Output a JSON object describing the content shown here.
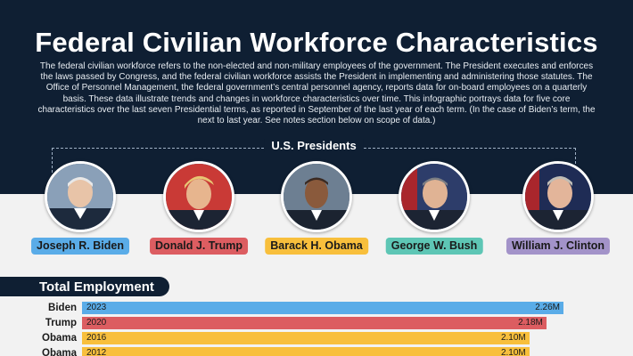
{
  "page": {
    "title": "Federal Civilian Workforce Characteristics",
    "intro": "The federal civilian workforce refers to the non-elected and non-military employees of the government. The President executes and enforces the laws passed by Congress, and the federal civilian workforce assists the President in implementing and administering those statutes. The Office of Personnel Management, the federal government’s central personnel agency, reports data for on-board employees on a quarterly basis. These data illustrate trends and changes in workforce characteristics over time. This infographic portrays data for five core characteristics over the last seven Presidential terms, as reported in September of the last year of each term. (In the case of Biden’s term, the next to last year. See notes section below on scope of data.)",
    "presidents_header": "U.S. Presidents"
  },
  "presidents": [
    {
      "name": "Joseph R. Biden",
      "color": "#5aace8"
    },
    {
      "name": "Donald J. Trump",
      "color": "#dc5d61"
    },
    {
      "name": "Barack H. Obama",
      "color": "#f8bf3c"
    },
    {
      "name": "George W. Bush",
      "color": "#5ec6b5"
    },
    {
      "name": "William J. Clinton",
      "color": "#a393c9"
    }
  ],
  "section": {
    "title": "Total Employment"
  },
  "chart_data": {
    "type": "bar",
    "title": "Total Employment",
    "orientation": "horizontal",
    "categories": [
      "Biden",
      "Trump",
      "Obama",
      "Obama"
    ],
    "years": [
      "2023",
      "2020",
      "2016",
      "2012"
    ],
    "values": [
      2.26,
      2.18,
      2.1,
      2.1
    ],
    "value_labels": [
      "2.26M",
      "2.18M",
      "2.10M",
      "2.10M"
    ],
    "units": "millions",
    "colors": [
      "#5aace8",
      "#dc5d61",
      "#f8bf3c",
      "#f8bf3c"
    ],
    "xlim": [
      0,
      2.26
    ],
    "grid": false
  }
}
